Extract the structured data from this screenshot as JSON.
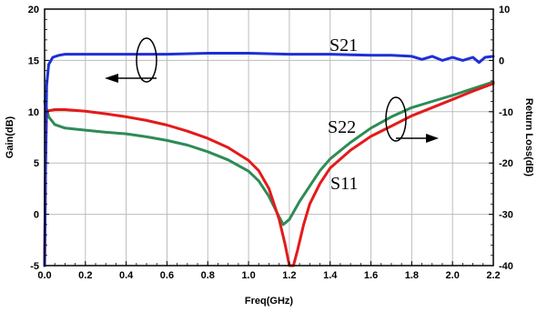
{
  "chart_data": {
    "type": "line",
    "title": "",
    "xlabel": "Freq(GHz)",
    "ylabel_left": "Gain(dB)",
    "ylabel_right": "Return Loss(dB)",
    "xlim": [
      0,
      2.2
    ],
    "ylim_left": [
      -5,
      20
    ],
    "ylim_right": [
      -40,
      10
    ],
    "grid": true,
    "x_ticks": [
      "0.0",
      "0.2",
      "0.4",
      "0.6",
      "0.8",
      "1.0",
      "1.2",
      "1.4",
      "1.6",
      "1.8",
      "2.0",
      "2.2"
    ],
    "y_left_ticks": [
      "-5",
      "0",
      "5",
      "10",
      "15",
      "20"
    ],
    "y_right_ticks": [
      "-40",
      "-30",
      "-20",
      "-10",
      "0",
      "10"
    ],
    "series": [
      {
        "name": "S21",
        "axis": "left",
        "color": "#1f2fd6",
        "points": [
          [
            0.0,
            -5
          ],
          [
            0.005,
            5
          ],
          [
            0.01,
            12.5
          ],
          [
            0.02,
            14.6
          ],
          [
            0.04,
            15.3
          ],
          [
            0.07,
            15.5
          ],
          [
            0.1,
            15.6
          ],
          [
            0.2,
            15.6
          ],
          [
            0.4,
            15.6
          ],
          [
            0.6,
            15.6
          ],
          [
            0.8,
            15.7
          ],
          [
            1.0,
            15.7
          ],
          [
            1.2,
            15.6
          ],
          [
            1.4,
            15.6
          ],
          [
            1.6,
            15.5
          ],
          [
            1.7,
            15.5
          ],
          [
            1.8,
            15.4
          ],
          [
            1.85,
            15.1
          ],
          [
            1.9,
            15.4
          ],
          [
            1.95,
            15.0
          ],
          [
            2.0,
            15.3
          ],
          [
            2.05,
            15.0
          ],
          [
            2.1,
            15.3
          ],
          [
            2.13,
            14.8
          ],
          [
            2.16,
            15.3
          ],
          [
            2.2,
            15.4
          ]
        ]
      },
      {
        "name": "S11",
        "axis": "right",
        "color": "#e41a1a",
        "points": [
          [
            0.0,
            -40
          ],
          [
            0.005,
            -20
          ],
          [
            0.01,
            -10
          ],
          [
            0.02,
            -9.8
          ],
          [
            0.05,
            -9.6
          ],
          [
            0.1,
            -9.6
          ],
          [
            0.2,
            -9.9
          ],
          [
            0.3,
            -10.4
          ],
          [
            0.4,
            -11.0
          ],
          [
            0.5,
            -11.7
          ],
          [
            0.6,
            -12.6
          ],
          [
            0.7,
            -13.8
          ],
          [
            0.8,
            -15.2
          ],
          [
            0.9,
            -17.0
          ],
          [
            1.0,
            -19.5
          ],
          [
            1.05,
            -21.5
          ],
          [
            1.1,
            -25.0
          ],
          [
            1.15,
            -31.0
          ],
          [
            1.18,
            -36.0
          ],
          [
            1.2,
            -40
          ],
          [
            1.22,
            -40
          ],
          [
            1.24,
            -37.0
          ],
          [
            1.27,
            -32.0
          ],
          [
            1.3,
            -28.0
          ],
          [
            1.35,
            -24.0
          ],
          [
            1.4,
            -21.0
          ],
          [
            1.5,
            -17.5
          ],
          [
            1.6,
            -14.8
          ],
          [
            1.7,
            -12.8
          ],
          [
            1.8,
            -10.8
          ],
          [
            1.9,
            -9.2
          ],
          [
            2.0,
            -7.6
          ],
          [
            2.1,
            -6.0
          ],
          [
            2.2,
            -4.5
          ]
        ]
      },
      {
        "name": "S22",
        "axis": "right",
        "color": "#2e8b57",
        "points": [
          [
            0.0,
            -8.0
          ],
          [
            0.02,
            -11.0
          ],
          [
            0.05,
            -12.5
          ],
          [
            0.1,
            -13.2
          ],
          [
            0.2,
            -13.6
          ],
          [
            0.3,
            -14.0
          ],
          [
            0.4,
            -14.3
          ],
          [
            0.5,
            -14.9
          ],
          [
            0.6,
            -15.6
          ],
          [
            0.7,
            -16.5
          ],
          [
            0.8,
            -17.8
          ],
          [
            0.9,
            -19.4
          ],
          [
            1.0,
            -21.6
          ],
          [
            1.05,
            -23.5
          ],
          [
            1.1,
            -26.5
          ],
          [
            1.15,
            -30.5
          ],
          [
            1.17,
            -32.0
          ],
          [
            1.2,
            -31.0
          ],
          [
            1.25,
            -27.5
          ],
          [
            1.3,
            -24.5
          ],
          [
            1.35,
            -21.5
          ],
          [
            1.4,
            -19.2
          ],
          [
            1.5,
            -16.0
          ],
          [
            1.6,
            -13.2
          ],
          [
            1.7,
            -11.0
          ],
          [
            1.8,
            -9.2
          ],
          [
            1.9,
            -8.0
          ],
          [
            2.0,
            -6.8
          ],
          [
            2.1,
            -5.5
          ],
          [
            2.2,
            -4.2
          ]
        ]
      }
    ],
    "annotations": {
      "s21": "S21",
      "s22": "S22",
      "s11": "S11"
    }
  }
}
